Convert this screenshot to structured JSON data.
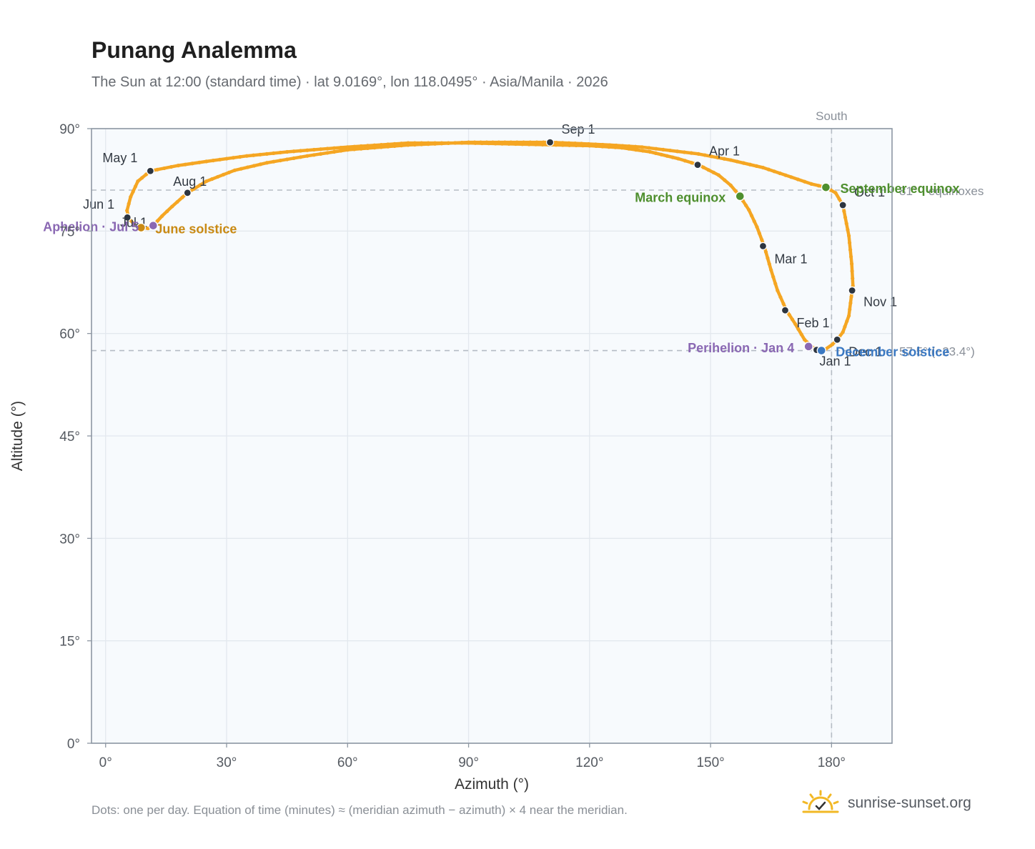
{
  "header": {
    "title": "Punang Analemma",
    "subtitle": "The Sun at 12:00 (standard time) · lat 9.0169°, lon 118.0495° · Asia/Manila · 2026"
  },
  "footer": {
    "footnote": "Dots: one per day. Equation of time (minutes) ≈ (meridian azimuth − azimuth) × 4 near the meridian.",
    "brand": "sunrise-sunset.org"
  },
  "colors": {
    "analemma": "#f5a623",
    "month_marker": "#2d3540",
    "equinox": "#4e8f2e",
    "june_solstice": "#c98a14",
    "december_solstice": "#3a78c2",
    "apsis": "#8a68b3",
    "plot_bg": "#f7fafd",
    "reference": "#b5bcc4",
    "brand_sun": "#f2b825"
  },
  "chart_data": {
    "type": "scatter",
    "xlabel": "Azimuth (°)",
    "ylabel": "Altitude (°)",
    "xlim": [
      -3.5,
      195
    ],
    "ylim": [
      0,
      90
    ],
    "x_ticks": [
      0,
      30,
      60,
      90,
      120,
      150,
      180
    ],
    "y_ticks": [
      0,
      15,
      30,
      45,
      60,
      75,
      90
    ],
    "x_tick_labels": [
      "0°",
      "30°",
      "60°",
      "90°",
      "120°",
      "150°",
      "180°"
    ],
    "y_tick_labels": [
      "0°",
      "15°",
      "30°",
      "45°",
      "60°",
      "75°",
      "90°"
    ],
    "grid": true,
    "reference_lines": {
      "vertical": {
        "x": 180,
        "label": "South"
      },
      "horizontal": [
        {
          "y": 81,
          "label": "81° · equinoxes"
        },
        {
          "y": 57.5,
          "label": "57.5° (−23.4°)"
        }
      ]
    },
    "analemma_path": [
      [
        177.5,
        57.5
      ],
      [
        175.5,
        57.9
      ],
      [
        173.3,
        59.1
      ],
      [
        171,
        61.4
      ],
      [
        168.8,
        63.4
      ],
      [
        166.6,
        66.3
      ],
      [
        165,
        69.3
      ],
      [
        163.3,
        72.8
      ],
      [
        161.5,
        75.6
      ],
      [
        159.5,
        78.1
      ],
      [
        157.3,
        80.1
      ],
      [
        155,
        81.7
      ],
      [
        152,
        83.2
      ],
      [
        147,
        84.7
      ],
      [
        142,
        85.6
      ],
      [
        135,
        86.6
      ],
      [
        128,
        87.2
      ],
      [
        120,
        87.5
      ],
      [
        105,
        87.7
      ],
      [
        90,
        87.9
      ],
      [
        75,
        87.9
      ],
      [
        60,
        87.3
      ],
      [
        45,
        86.6
      ],
      [
        35,
        86
      ],
      [
        25,
        85.2
      ],
      [
        18,
        84.6
      ],
      [
        11.1,
        83.8
      ],
      [
        8,
        82.3
      ],
      [
        6.2,
        80
      ],
      [
        5.3,
        78
      ],
      [
        5.8,
        76.8
      ],
      [
        7.4,
        75.8
      ],
      [
        8.8,
        75.5
      ],
      [
        10.5,
        75.4
      ],
      [
        11.8,
        75.8
      ],
      [
        14,
        77.2
      ],
      [
        16.5,
        78.6
      ],
      [
        20.3,
        80.6
      ],
      [
        25,
        82.3
      ],
      [
        32,
        83.9
      ],
      [
        40,
        85
      ],
      [
        50,
        86
      ],
      [
        60,
        86.9
      ],
      [
        75,
        87.6
      ],
      [
        90,
        88
      ],
      [
        102,
        88
      ],
      [
        110.2,
        88
      ],
      [
        118,
        87.8
      ],
      [
        125,
        87.6
      ],
      [
        133,
        87.3
      ],
      [
        140,
        86.8
      ],
      [
        147,
        86.3
      ],
      [
        155,
        85.4
      ],
      [
        163,
        84.3
      ],
      [
        170,
        82.9
      ],
      [
        175,
        81.9
      ],
      [
        178.6,
        81.4
      ],
      [
        181,
        80.6
      ],
      [
        182.8,
        78.8
      ],
      [
        184.3,
        74.3
      ],
      [
        185,
        70.2
      ],
      [
        185.3,
        67
      ],
      [
        185.1,
        66.3
      ],
      [
        184.3,
        62.6
      ],
      [
        182.8,
        60.2
      ],
      [
        181.4,
        59.1
      ],
      [
        180.2,
        58.4
      ],
      [
        178.5,
        57.7
      ],
      [
        177.5,
        57.5
      ]
    ],
    "month_markers": [
      {
        "label": "Jan 1",
        "az": 176.3,
        "alt": 57.6
      },
      {
        "label": "Feb 1",
        "az": 168.5,
        "alt": 63.4
      },
      {
        "label": "Mar 1",
        "az": 163,
        "alt": 72.8
      },
      {
        "label": "Apr 1",
        "az": 146.8,
        "alt": 84.7
      },
      {
        "label": "May 1",
        "az": 11.1,
        "alt": 83.8
      },
      {
        "label": "Jun 1",
        "az": 5.4,
        "alt": 77
      },
      {
        "label": "Jul 1",
        "az": 8.2,
        "alt": 75.7
      },
      {
        "label": "Aug 1",
        "az": 20.3,
        "alt": 80.6
      },
      {
        "label": "Sep 1",
        "az": 110.2,
        "alt": 88
      },
      {
        "label": "Oct 1",
        "az": 182.8,
        "alt": 78.8
      },
      {
        "label": "Nov 1",
        "az": 185.1,
        "alt": 66.3
      },
      {
        "label": "Dec 1",
        "az": 181.4,
        "alt": 59.1
      }
    ],
    "events": [
      {
        "label": "March equinox",
        "az": 157.3,
        "alt": 80.1,
        "kind": "equinox"
      },
      {
        "label": "September equinox",
        "az": 178.6,
        "alt": 81.4,
        "kind": "equinox"
      },
      {
        "label": "June solstice",
        "az": 8.8,
        "alt": 75.5,
        "kind": "june_solstice"
      },
      {
        "label": "December solstice",
        "az": 177.5,
        "alt": 57.5,
        "kind": "december_solstice"
      },
      {
        "label": "Aphelion · Jul 5",
        "az": 11.8,
        "alt": 75.8,
        "kind": "apsis"
      },
      {
        "label": "Perihelion · Jan 4",
        "az": 174.3,
        "alt": 58.1,
        "kind": "apsis"
      }
    ]
  }
}
